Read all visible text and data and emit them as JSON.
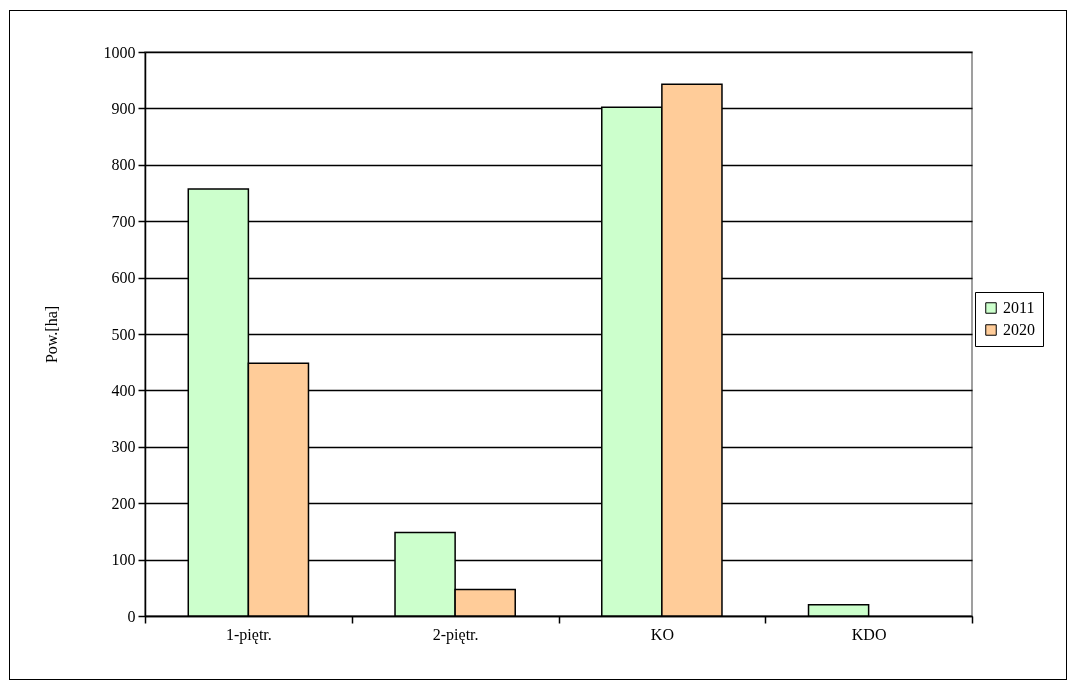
{
  "chart_data": {
    "type": "bar",
    "ylabel": "Pow.[ha]",
    "categories": [
      "1-piętr.",
      "2-piętr.",
      "KO",
      "KDO"
    ],
    "series": [
      {
        "name": "2011",
        "color": "#ccffcc",
        "values": [
          757,
          148,
          902,
          20
        ]
      },
      {
        "name": "2020",
        "color": "#ffcc99",
        "values": [
          448,
          47,
          943,
          null
        ]
      }
    ],
    "ylim": [
      0,
      1000
    ],
    "yticks": [
      0,
      100,
      200,
      300,
      400,
      500,
      600,
      700,
      800,
      900,
      1000
    ],
    "grid": "y",
    "legend": "right"
  }
}
